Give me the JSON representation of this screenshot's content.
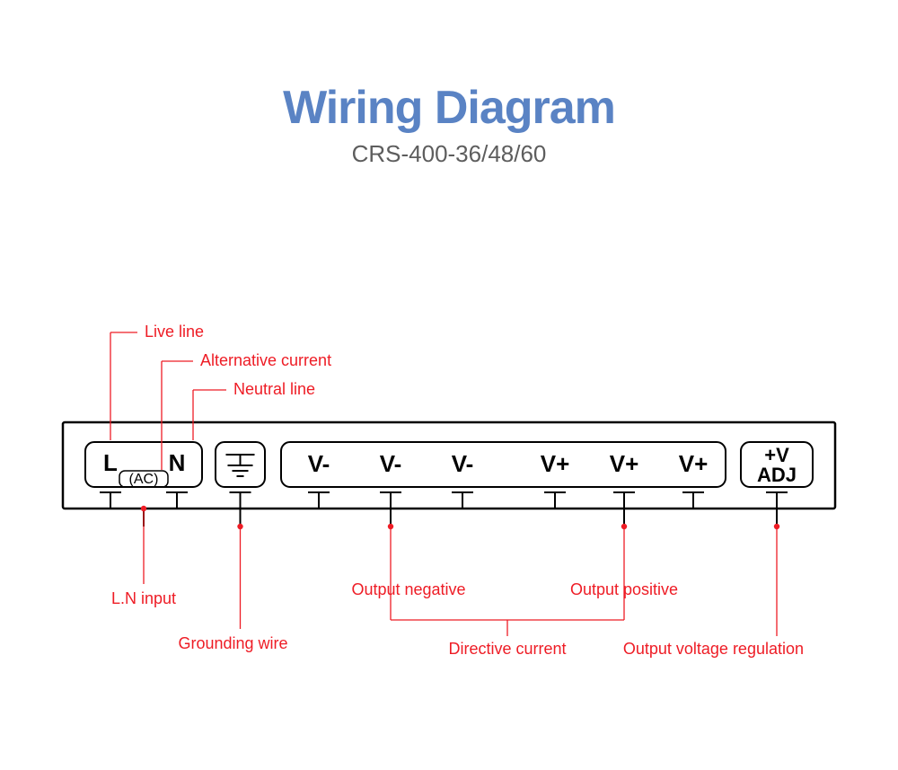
{
  "header": {
    "title": "Wiring Diagram",
    "subtitle": "CRS-400-36/48/60",
    "title_color": "#5a83c4",
    "title_fontsize": 52,
    "subtitle_color": "#5d5d5d",
    "subtitle_fontsize": 26
  },
  "diagram": {
    "type": "wiring-diagram",
    "background_color": "#ffffff",
    "stroke_color": "#000000",
    "callout_color": "#ee1c25",
    "stroke_width_outer": 2.5,
    "stroke_width_inner": 2,
    "terminal_fontsize": 26,
    "terminal_fontsize_small": 16,
    "callout_fontsize": 18,
    "terminals": {
      "L": "L",
      "AC": "(AC)",
      "N": "N",
      "Vminus": "V-",
      "Vplus": "V+",
      "plusV": "+V",
      "ADJ": "ADJ"
    },
    "callouts_top": {
      "live_line": "Live line",
      "alternative_current": "Alternative current",
      "neutral_line": "Neutral line"
    },
    "callouts_bottom": {
      "ln_input": "L.N input",
      "grounding_wire": "Grounding wire",
      "output_negative": "Output negative",
      "output_positive": "Output positive",
      "directive_current": "Directive current",
      "output_voltage_regulation": "Output voltage regulation"
    }
  }
}
